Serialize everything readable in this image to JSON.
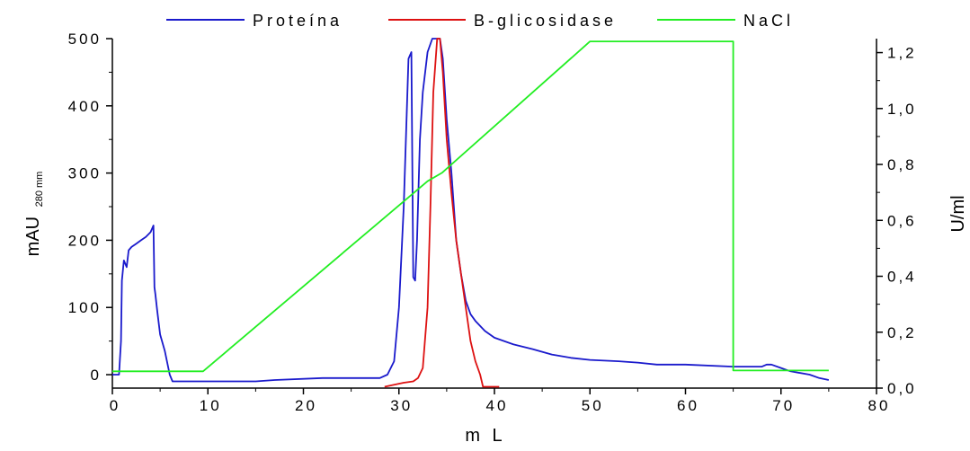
{
  "chart_data": {
    "type": "line",
    "x_axis": {
      "label": "m L",
      "lim": [
        0,
        80
      ],
      "ticks": [
        0,
        10,
        20,
        30,
        40,
        50,
        60,
        70,
        80
      ],
      "tick_labels": [
        "0",
        "10",
        "20",
        "30",
        "40",
        "50",
        "60",
        "70",
        "80"
      ]
    },
    "y_axis_left": {
      "label": "mAU",
      "label_subscript": "280 mm",
      "lim": [
        -20,
        500
      ],
      "ticks": [
        0,
        100,
        200,
        300,
        400,
        500
      ],
      "tick_labels": [
        "0",
        "100",
        "200",
        "300",
        "400",
        "500"
      ]
    },
    "y_axis_right": {
      "label": "U/ml",
      "lim": [
        0,
        1.25
      ],
      "ticks": [
        0,
        0.2,
        0.4,
        0.6,
        0.8,
        1.0,
        1.2
      ],
      "tick_labels": [
        "0,0",
        "0,2",
        "0,4",
        "0,6",
        "0,8",
        "1,0",
        "1,2"
      ]
    },
    "grid": false,
    "legend_position": "top",
    "series": [
      {
        "name": "Proteína",
        "color": "#1a1acc",
        "axis": "left",
        "x": [
          0,
          0.7,
          0.9,
          1.0,
          1.2,
          1.5,
          1.7,
          2.0,
          2.5,
          3.0,
          3.5,
          4.0,
          4.3,
          4.4,
          4.5,
          4.7,
          5.0,
          5.5,
          6.0,
          6.3,
          7.0,
          8,
          10,
          15,
          17,
          22,
          25,
          28,
          28.8,
          29.5,
          30.0,
          30.5,
          31.0,
          31.3,
          31.5,
          31.7,
          31.9,
          32.2,
          32.5,
          33.0,
          33.5,
          34.0,
          34.3,
          34.6,
          35.0,
          35.5,
          36.0,
          36.5,
          37.0,
          37.5,
          38,
          39,
          40,
          42,
          44,
          46,
          48,
          50,
          53,
          55,
          57,
          60,
          65,
          67,
          68,
          68.5,
          69,
          70,
          71,
          73,
          74,
          75
        ],
        "y": [
          0,
          0,
          50,
          140,
          170,
          160,
          185,
          190,
          195,
          200,
          205,
          212,
          222,
          130,
          120,
          95,
          60,
          35,
          0,
          -10,
          -10,
          -10,
          -10,
          -10,
          -8,
          -5,
          -5,
          -5,
          0,
          20,
          100,
          250,
          470,
          480,
          145,
          140,
          200,
          350,
          420,
          480,
          500,
          500,
          500,
          470,
          380,
          300,
          200,
          150,
          110,
          90,
          80,
          65,
          55,
          45,
          38,
          30,
          25,
          22,
          20,
          18,
          15,
          15,
          12,
          12,
          12,
          15,
          15,
          10,
          5,
          0,
          -5,
          -8
        ]
      },
      {
        "name": "B-glicosidase",
        "color": "#dd1111",
        "axis": "left",
        "x": [
          28.5,
          29.5,
          30.5,
          31.5,
          32.0,
          32.5,
          33.0,
          33.3,
          33.6,
          34.0,
          34.3,
          34.6,
          35.0,
          35.5,
          36.0,
          36.5,
          37.0,
          37.5,
          38.0,
          38.5,
          38.8,
          40.5
        ],
        "y": [
          -18,
          -15,
          -12,
          -10,
          -5,
          10,
          100,
          250,
          420,
          500,
          500,
          450,
          350,
          270,
          200,
          150,
          100,
          50,
          20,
          0,
          -18,
          -18
        ]
      },
      {
        "name": "NaCl",
        "color": "#22ee22",
        "axis": "right",
        "x": [
          0,
          9.5,
          33,
          34.5,
          50,
          65,
          65,
          75
        ],
        "y": [
          0.06,
          0.06,
          0.74,
          0.77,
          1.24,
          1.24,
          0.063,
          0.063
        ]
      }
    ]
  }
}
